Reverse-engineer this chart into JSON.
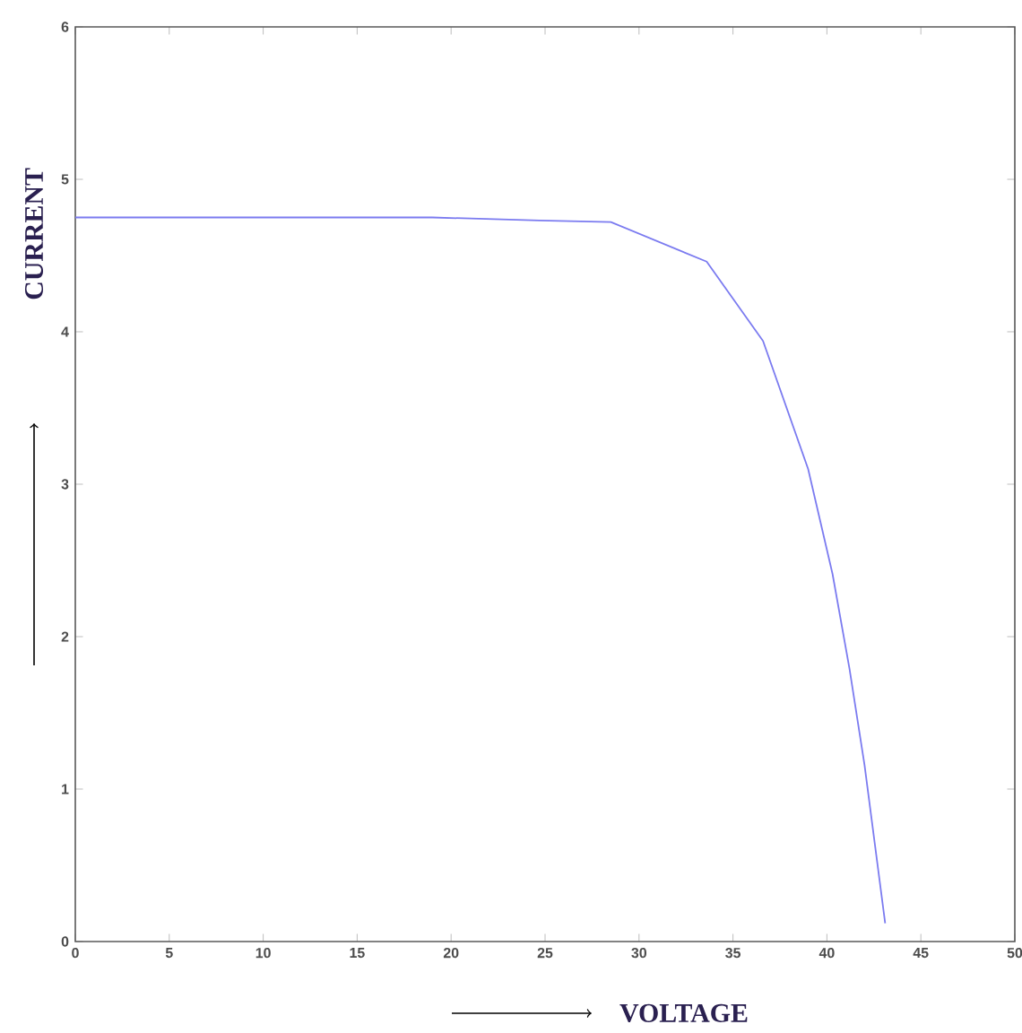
{
  "chart_data": {
    "type": "line",
    "xlabel": "VOLTAGE",
    "ylabel": "CURRENT",
    "x": [
      0,
      5,
      10,
      15,
      19,
      24.7,
      28.5,
      33.6,
      36.6,
      39.0,
      40.3,
      41.2,
      42.0,
      43.1
    ],
    "series": [
      {
        "color": "#7b7bf0",
        "values": [
          4.75,
          4.75,
          4.75,
          4.75,
          4.75,
          4.73,
          4.72,
          4.46,
          3.94,
          3.1,
          2.41,
          1.79,
          1.16,
          0.12
        ]
      }
    ],
    "xlim": [
      0,
      50
    ],
    "ylim": [
      0,
      6
    ],
    "xticks": [
      0,
      5,
      10,
      15,
      20,
      25,
      30,
      35,
      40,
      45,
      50
    ],
    "yticks": [
      0,
      1,
      2,
      3,
      4,
      5,
      6
    ],
    "grid": false,
    "marker": "none",
    "line_style": "solid"
  }
}
